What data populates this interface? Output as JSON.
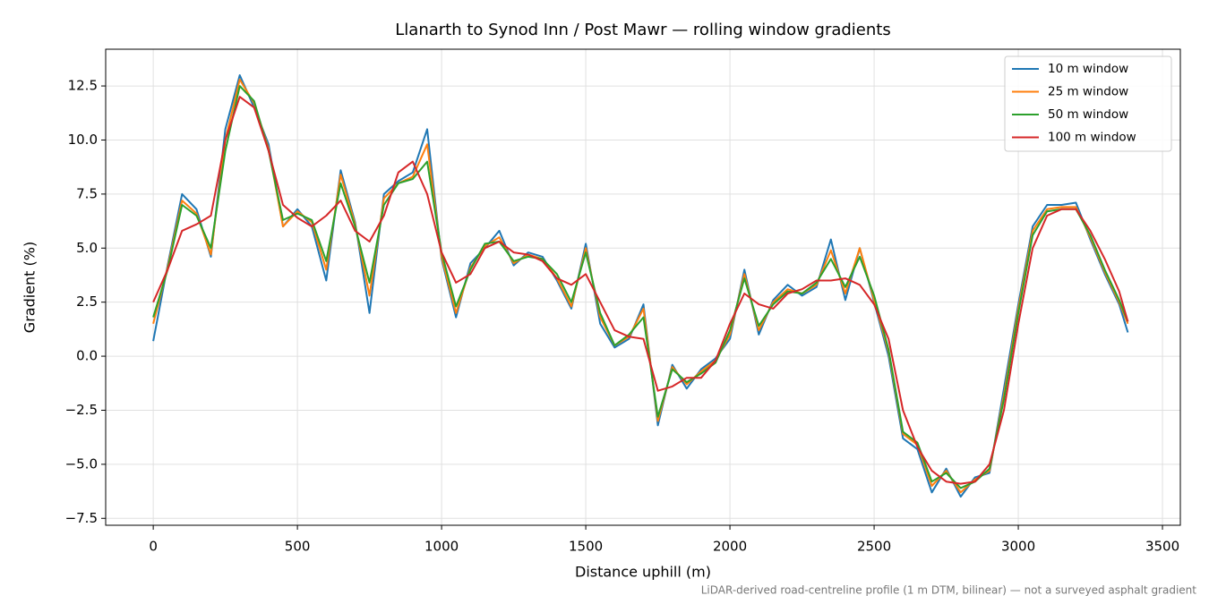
{
  "chart_data": {
    "type": "line",
    "title": "Llanarth to Synod Inn / Post Mawr — rolling window gradients",
    "x_label": "Distance uphill (m)",
    "y_label": "Gradient (%)",
    "note": "LiDAR-derived road-centreline profile (1 m DTM, bilinear) — not a surveyed asphalt gradient",
    "x": [
      0,
      50,
      100,
      150,
      200,
      250,
      300,
      350,
      400,
      450,
      500,
      550,
      600,
      650,
      700,
      750,
      800,
      850,
      900,
      950,
      1000,
      1050,
      1100,
      1150,
      1200,
      1250,
      1300,
      1350,
      1400,
      1450,
      1500,
      1550,
      1600,
      1650,
      1700,
      1750,
      1800,
      1850,
      1900,
      1950,
      2000,
      2050,
      2100,
      2150,
      2200,
      2250,
      2300,
      2350,
      2400,
      2450,
      2500,
      2550,
      2600,
      2650,
      2700,
      2750,
      2800,
      2850,
      2900,
      2950,
      3000,
      3050,
      3100,
      3150,
      3200,
      3250,
      3300,
      3350,
      3380
    ],
    "series": [
      {
        "name": "10 m window",
        "color": "#1f77b4",
        "values": [
          0.7,
          4.2,
          7.5,
          6.8,
          4.6,
          10.5,
          13.0,
          11.5,
          9.8,
          6.0,
          6.8,
          6.0,
          3.5,
          8.6,
          6.2,
          2.0,
          7.5,
          8.1,
          8.5,
          10.5,
          4.5,
          1.8,
          4.3,
          5.0,
          5.8,
          4.2,
          4.8,
          4.6,
          3.5,
          2.2,
          5.2,
          1.5,
          0.4,
          0.8,
          2.4,
          -3.2,
          -0.4,
          -1.5,
          -0.6,
          -0.1,
          0.8,
          4.0,
          1.0,
          2.6,
          3.3,
          2.8,
          3.2,
          5.4,
          2.6,
          5.0,
          2.5,
          0.0,
          -3.8,
          -4.3,
          -6.3,
          -5.2,
          -6.5,
          -5.6,
          -5.4,
          -1.5,
          2.4,
          6.0,
          7.0,
          7.0,
          7.1,
          5.4,
          3.8,
          2.4,
          1.1
        ]
      },
      {
        "name": "25 m window",
        "color": "#ff7f0e",
        "values": [
          1.5,
          4.1,
          7.2,
          6.6,
          4.7,
          10.0,
          12.8,
          11.7,
          9.6,
          6.0,
          6.7,
          6.2,
          4.0,
          8.4,
          6.1,
          2.8,
          7.3,
          8.0,
          8.3,
          9.8,
          4.6,
          2.0,
          4.1,
          5.1,
          5.5,
          4.3,
          4.7,
          4.5,
          3.6,
          2.3,
          5.0,
          1.8,
          0.5,
          0.9,
          2.2,
          -3.0,
          -0.5,
          -1.3,
          -0.7,
          -0.2,
          1.0,
          3.8,
          1.2,
          2.5,
          3.1,
          2.9,
          3.3,
          4.9,
          2.9,
          5.0,
          2.6,
          0.2,
          -3.6,
          -4.1,
          -6.0,
          -5.3,
          -6.3,
          -5.7,
          -5.3,
          -1.8,
          2.2,
          5.8,
          6.8,
          6.9,
          6.9,
          5.5,
          3.9,
          2.5,
          1.5
        ]
      },
      {
        "name": "50 m window",
        "color": "#2ca02c",
        "values": [
          1.8,
          4.0,
          7.0,
          6.5,
          5.0,
          9.5,
          12.5,
          11.8,
          9.5,
          6.3,
          6.6,
          6.3,
          4.4,
          8.0,
          6.0,
          3.4,
          7.0,
          8.0,
          8.2,
          9.0,
          4.8,
          2.3,
          4.0,
          5.2,
          5.3,
          4.4,
          4.6,
          4.5,
          3.8,
          2.5,
          4.8,
          2.0,
          0.5,
          1.0,
          1.8,
          -2.8,
          -0.6,
          -1.2,
          -0.8,
          -0.3,
          1.2,
          3.6,
          1.4,
          2.4,
          3.0,
          2.9,
          3.4,
          4.5,
          3.2,
          4.6,
          2.8,
          0.3,
          -3.5,
          -4.0,
          -5.8,
          -5.4,
          -6.1,
          -5.8,
          -5.2,
          -2.0,
          2.0,
          5.6,
          6.7,
          6.8,
          6.8,
          5.6,
          4.0,
          2.6,
          1.6
        ]
      },
      {
        "name": "100 m window",
        "color": "#d62728",
        "values": [
          2.5,
          4.0,
          5.8,
          6.1,
          6.5,
          10.0,
          12.0,
          11.5,
          9.5,
          7.0,
          6.4,
          6.0,
          6.5,
          7.2,
          5.8,
          5.3,
          6.5,
          8.5,
          9.0,
          7.5,
          4.8,
          3.4,
          3.8,
          5.0,
          5.3,
          4.8,
          4.7,
          4.4,
          3.6,
          3.3,
          3.8,
          2.5,
          1.2,
          0.9,
          0.8,
          -1.6,
          -1.4,
          -1.0,
          -1.0,
          -0.2,
          1.5,
          2.9,
          2.4,
          2.2,
          2.9,
          3.1,
          3.5,
          3.5,
          3.6,
          3.3,
          2.4,
          0.8,
          -2.5,
          -4.2,
          -5.3,
          -5.8,
          -5.9,
          -5.8,
          -5.0,
          -2.5,
          1.5,
          5.0,
          6.5,
          6.8,
          6.8,
          5.8,
          4.5,
          3.0,
          1.6
        ]
      }
    ],
    "xlim": [
      -165,
      3562
    ],
    "ylim": [
      -7.82,
      14.2
    ],
    "xticks": [
      0,
      500,
      1000,
      1500,
      2000,
      2500,
      3000,
      3500
    ],
    "yticks": [
      {
        "value": -7.5,
        "label": "−7.5"
      },
      {
        "value": -5,
        "label": "−5.0"
      },
      {
        "value": -2.5,
        "label": "−2.5"
      },
      {
        "value": 0,
        "label": "0.0"
      },
      2.5,
      {
        "value": 5,
        "label": "5.0"
      },
      7.5,
      {
        "value": 10,
        "label": "10.0"
      },
      12.5
    ],
    "grid": true,
    "legend": "upper right"
  }
}
